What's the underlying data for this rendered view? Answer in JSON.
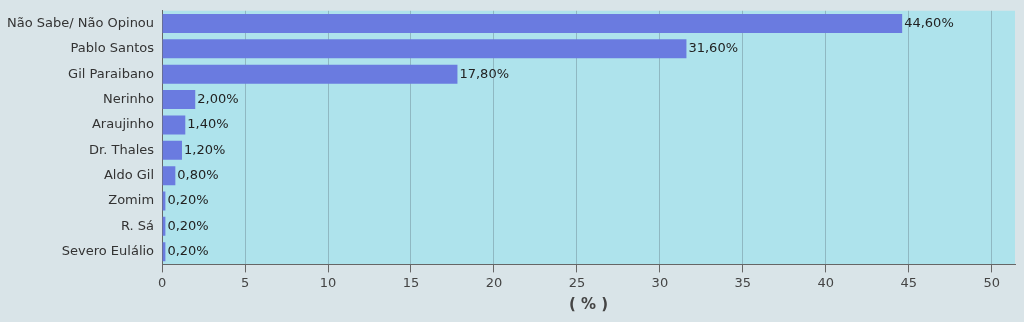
{
  "chart_data": {
    "type": "bar",
    "orientation": "horizontal",
    "xlabel": "( % )",
    "categories": [
      "Não Sabe/ Não Opinou",
      "Pablo Santos",
      "Gil Paraibano",
      "Nerinho",
      "Araujinho",
      "Dr. Thales",
      "Aldo Gil",
      "Zomim",
      "R. Sá",
      "Severo Eulálio"
    ],
    "values": [
      44.6,
      31.6,
      17.8,
      2.0,
      1.4,
      1.2,
      0.8,
      0.2,
      0.2,
      0.2
    ],
    "value_labels": [
      "44,60%",
      "31,60%",
      "17,80%",
      "2,00%",
      "1,40%",
      "1,20%",
      "0,80%",
      "0,20%",
      "0,20%",
      "0,20%"
    ],
    "color": "#6a7be0",
    "xlim": [
      0,
      51.4
    ],
    "xticks": [
      0,
      5,
      10,
      15,
      20,
      25,
      30,
      35,
      40,
      45,
      50
    ],
    "grid": "x",
    "legend": false
  }
}
